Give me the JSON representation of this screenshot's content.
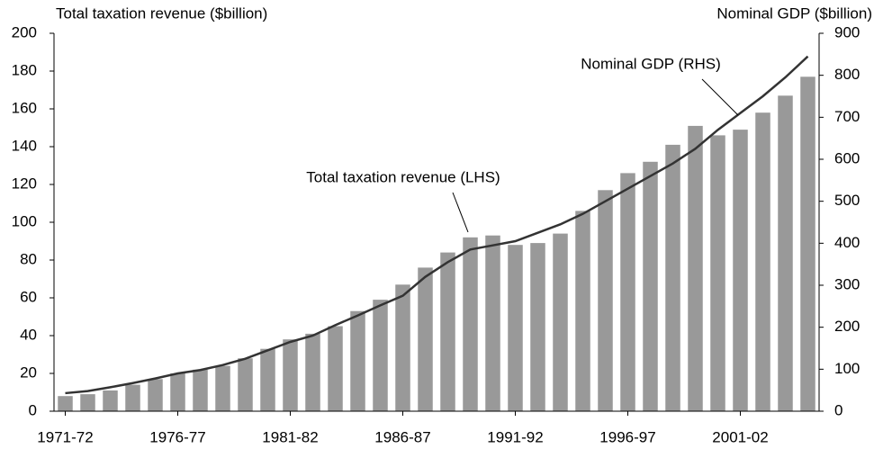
{
  "chart_data": {
    "type": "bar-line",
    "y_axis_title": "Total taxation revenue ($billion)",
    "y2_axis_title": "Nominal GDP ($billion)",
    "categories": [
      "1971-72",
      null,
      null,
      null,
      null,
      "1976-77",
      null,
      null,
      null,
      null,
      "1981-82",
      null,
      null,
      null,
      null,
      "1986-87",
      null,
      null,
      null,
      null,
      "1991-92",
      null,
      null,
      null,
      null,
      "1996-97",
      null,
      null,
      null,
      null,
      "2001-02",
      null,
      null,
      null
    ],
    "series": [
      {
        "name": "Total taxation revenue (LHS)",
        "type": "bar",
        "color": "#999999",
        "values": [
          8,
          9,
          11,
          14,
          17,
          20,
          22,
          24,
          28,
          33,
          38,
          41,
          45,
          53,
          59,
          67,
          76,
          84,
          92,
          93,
          88,
          89,
          94,
          106,
          117,
          126,
          132,
          141,
          151,
          146,
          149,
          158,
          167,
          177
        ]
      },
      {
        "name": "Nominal GDP (RHS)",
        "type": "line",
        "axis": "y2",
        "color": "#333333",
        "values": [
          43,
          48,
          57,
          67,
          78,
          90,
          98,
          110,
          125,
          145,
          165,
          180,
          205,
          228,
          252,
          275,
          320,
          355,
          385,
          395,
          405,
          425,
          445,
          470,
          500,
          530,
          560,
          590,
          625,
          670,
          710,
          750,
          795,
          845
        ]
      }
    ],
    "ylim": [
      0,
      200
    ],
    "yticks": [
      0,
      20,
      40,
      60,
      80,
      100,
      120,
      140,
      160,
      180,
      200
    ],
    "y2lim": [
      0,
      900
    ],
    "y2ticks": [
      0,
      100,
      200,
      300,
      400,
      500,
      600,
      700,
      800,
      900
    ]
  }
}
